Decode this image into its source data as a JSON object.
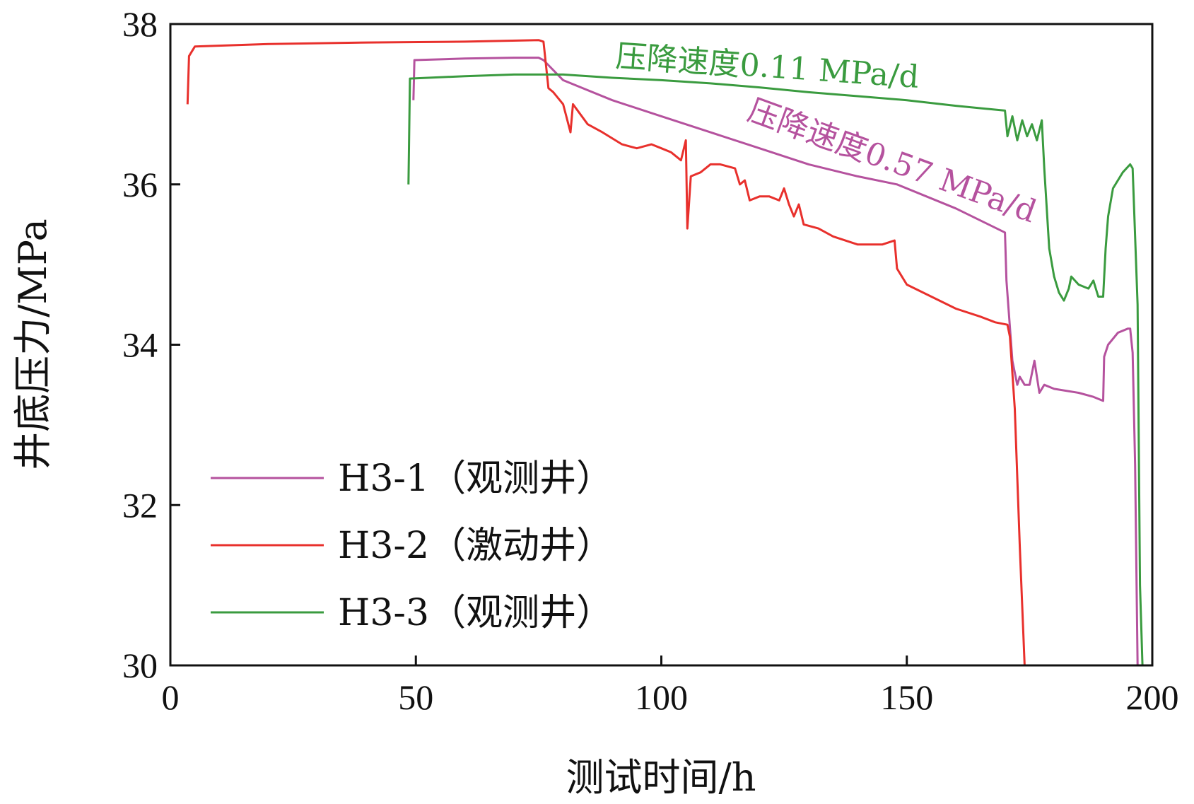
{
  "chart_data": {
    "type": "line",
    "title": "",
    "xlabel": "测试时间/h",
    "ylabel": "井底压力/MPa",
    "xlim": [
      0,
      200
    ],
    "ylim": [
      30,
      38
    ],
    "xticks": [
      0,
      50,
      100,
      150,
      200
    ],
    "yticks": [
      30,
      32,
      34,
      36,
      38
    ],
    "grid": false,
    "legend_position": "bottom-left",
    "series": [
      {
        "name": "H3-1（观测井）",
        "color": "#b5529e",
        "x": [
          49.5,
          49.7,
          60,
          70,
          75,
          76,
          80,
          90,
          100,
          110,
          120,
          130,
          140,
          148,
          160,
          170,
          170.3,
          171.5,
          172.5,
          173,
          174,
          175,
          176,
          177,
          178,
          180,
          185,
          188,
          190,
          190.2,
          191,
          193,
          195,
          195.5,
          196,
          196.5,
          197
        ],
        "y": [
          37.05,
          37.55,
          37.57,
          37.58,
          37.58,
          37.55,
          37.3,
          37.05,
          36.85,
          36.65,
          36.45,
          36.25,
          36.1,
          36.0,
          35.7,
          35.4,
          34.8,
          33.8,
          33.5,
          33.6,
          33.5,
          33.5,
          33.8,
          33.4,
          33.5,
          33.45,
          33.4,
          33.35,
          33.3,
          33.85,
          34.0,
          34.15,
          34.2,
          34.2,
          33.9,
          32.5,
          30.0
        ]
      },
      {
        "name": "H3-2（激动井）",
        "color": "#e8302c",
        "x": [
          3.5,
          3.8,
          5,
          20,
          40,
          60,
          75,
          76,
          77,
          78,
          80,
          81.5,
          82,
          85,
          88,
          92,
          95,
          98,
          100,
          102,
          104,
          105,
          105.3,
          106,
          108,
          110,
          112,
          115,
          116,
          117,
          118,
          120,
          122,
          124,
          125,
          126,
          127,
          128,
          129,
          132,
          135,
          140,
          145,
          147.5,
          148,
          150,
          155,
          160,
          165,
          168,
          170.5,
          171,
          172,
          173,
          174
        ],
        "y": [
          37.0,
          37.6,
          37.72,
          37.75,
          37.77,
          37.78,
          37.8,
          37.78,
          37.2,
          37.15,
          37.0,
          36.65,
          37.0,
          36.75,
          36.65,
          36.5,
          36.45,
          36.5,
          36.45,
          36.4,
          36.3,
          36.55,
          35.45,
          36.1,
          36.15,
          36.25,
          36.25,
          36.2,
          36.0,
          36.05,
          35.8,
          35.85,
          35.85,
          35.8,
          35.95,
          35.75,
          35.6,
          35.75,
          35.5,
          35.45,
          35.35,
          35.25,
          35.25,
          35.3,
          34.95,
          34.75,
          34.6,
          34.45,
          34.35,
          34.28,
          34.25,
          34.1,
          33.2,
          31.5,
          30.0
        ]
      },
      {
        "name": "H3-3（观测井）",
        "color": "#3a9b3f",
        "x": [
          48.5,
          48.8,
          60,
          70,
          80,
          90,
          100,
          110,
          120,
          130,
          140,
          150,
          160,
          170,
          170.5,
          171.5,
          172.5,
          173.5,
          174.5,
          175.5,
          176.5,
          177.5,
          178,
          179,
          180,
          181,
          182,
          183,
          183.5,
          185,
          187,
          188,
          189,
          190,
          190.5,
          191,
          192,
          194,
          195.5,
          196,
          197,
          197.5,
          198
        ],
        "y": [
          36.0,
          37.32,
          37.35,
          37.37,
          37.37,
          37.33,
          37.3,
          37.26,
          37.21,
          37.15,
          37.1,
          37.05,
          36.98,
          36.92,
          36.6,
          36.85,
          36.55,
          36.8,
          36.6,
          36.75,
          36.55,
          36.8,
          36.2,
          35.2,
          34.85,
          34.65,
          34.55,
          34.7,
          34.85,
          34.75,
          34.7,
          34.8,
          34.6,
          34.6,
          35.2,
          35.6,
          35.95,
          36.15,
          36.25,
          36.2,
          34.5,
          31.0,
          30.0
        ]
      }
    ],
    "annotations": [
      {
        "text": "压降速度0.11 MPa/d",
        "color": "#3a9b3f"
      },
      {
        "text": "压降速度0.57 MPa/d",
        "color": "#b5529e"
      }
    ]
  }
}
